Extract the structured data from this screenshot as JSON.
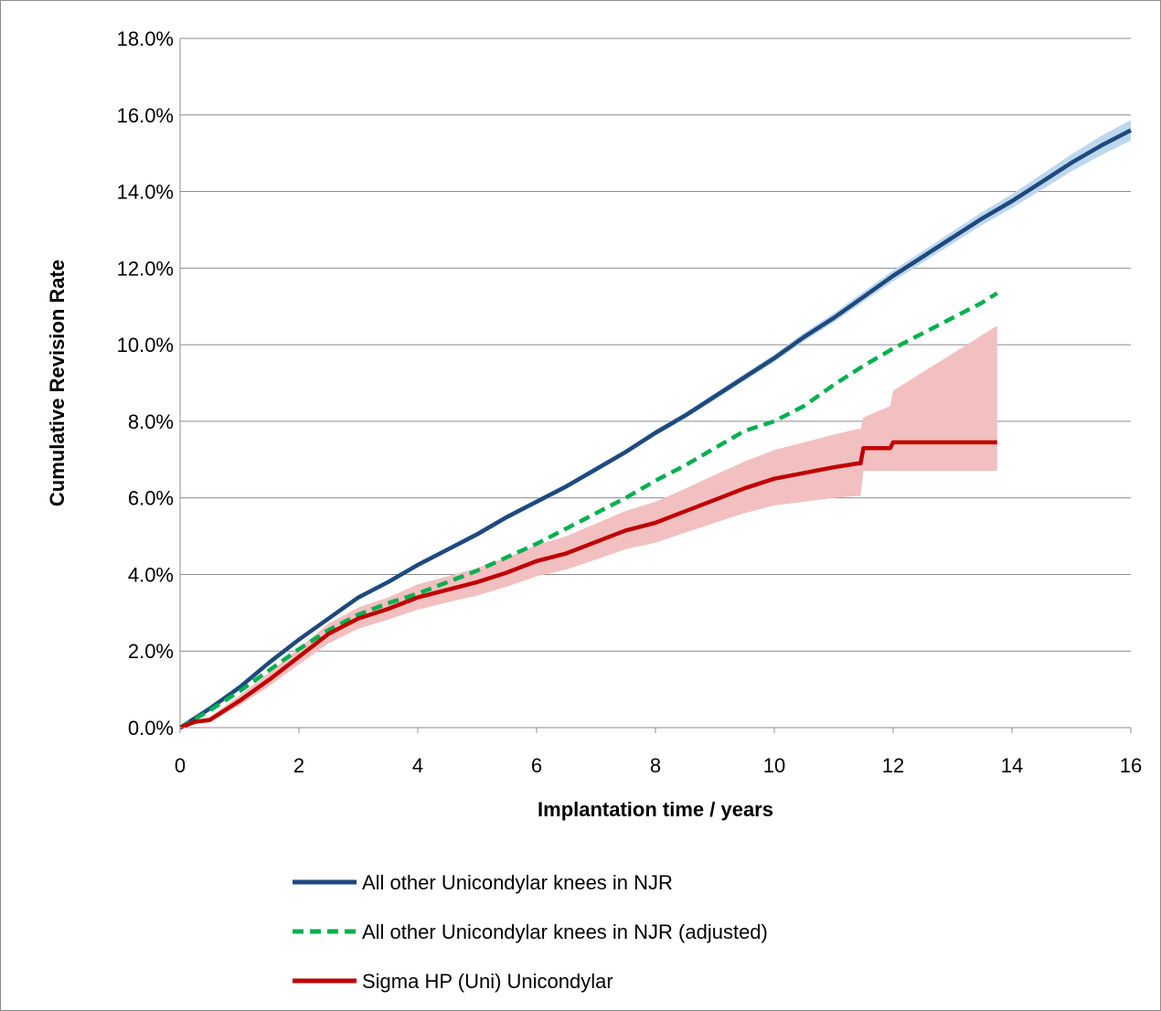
{
  "chart_data": {
    "type": "line",
    "xlabel": "Implantation time  / years",
    "ylabel": "Cumulative Revision Rate",
    "xlim": [
      0,
      16
    ],
    "ylim": [
      0,
      18
    ],
    "x_ticks": [
      0,
      2,
      4,
      6,
      8,
      10,
      12,
      14,
      16
    ],
    "x_tick_labels": [
      "0",
      "2",
      "4",
      "6",
      "8",
      "10",
      "12",
      "14",
      "16"
    ],
    "y_ticks": [
      0,
      2,
      4,
      6,
      8,
      10,
      12,
      14,
      16,
      18
    ],
    "y_tick_labels": [
      "0.0%",
      "2.0%",
      "4.0%",
      "6.0%",
      "8.0%",
      "10.0%",
      "12.0%",
      "14.0%",
      "16.0%",
      "18.0%"
    ],
    "grid": "horizontal",
    "legend_position": "bottom",
    "series": [
      {
        "name": "All other Unicondylar knees in NJR",
        "color": "#1f497d",
        "band_color": "#bdd7ee",
        "style": "solid",
        "x": [
          0,
          0.5,
          1,
          1.5,
          2,
          2.5,
          3,
          3.5,
          4,
          4.5,
          5,
          5.5,
          6,
          6.5,
          7,
          7.5,
          8,
          8.5,
          9,
          9.5,
          10,
          10.5,
          11,
          11.5,
          12,
          12.5,
          13,
          13.5,
          14,
          14.5,
          15,
          15.5,
          16
        ],
        "values": [
          0,
          0.5,
          1.05,
          1.7,
          2.3,
          2.85,
          3.4,
          3.8,
          4.25,
          4.65,
          5.05,
          5.5,
          5.9,
          6.3,
          6.75,
          7.2,
          7.7,
          8.15,
          8.65,
          9.15,
          9.65,
          10.2,
          10.7,
          11.25,
          11.8,
          12.3,
          12.8,
          13.3,
          13.75,
          14.25,
          14.75,
          15.2,
          15.6
        ],
        "lower": [
          0,
          0.47,
          1.0,
          1.64,
          2.24,
          2.79,
          3.34,
          3.74,
          4.19,
          4.59,
          4.98,
          5.43,
          5.83,
          6.23,
          6.68,
          7.13,
          7.62,
          8.07,
          8.56,
          9.06,
          9.55,
          10.09,
          10.58,
          11.12,
          11.66,
          12.15,
          12.64,
          13.13,
          13.57,
          14.05,
          14.53,
          14.95,
          15.33
        ],
        "upper": [
          0,
          0.53,
          1.1,
          1.76,
          2.36,
          2.91,
          3.46,
          3.86,
          4.31,
          4.71,
          5.12,
          5.57,
          5.97,
          6.37,
          6.82,
          7.27,
          7.78,
          8.23,
          8.74,
          9.24,
          9.75,
          10.31,
          10.82,
          11.38,
          11.94,
          12.45,
          12.96,
          13.47,
          13.93,
          14.45,
          14.97,
          15.45,
          15.87
        ]
      },
      {
        "name": "All other Unicondylar knees in NJR (adjusted)",
        "color": "#00b050",
        "style": "dashed",
        "x": [
          0,
          0.5,
          1,
          1.5,
          2,
          2.5,
          3,
          3.5,
          4,
          4.5,
          5,
          5.5,
          6,
          6.5,
          7,
          7.5,
          8,
          8.5,
          9,
          9.5,
          10,
          10.5,
          11,
          11.5,
          12,
          12.5,
          13,
          13.5,
          13.75
        ],
        "values": [
          0,
          0.45,
          0.95,
          1.5,
          2.05,
          2.55,
          2.95,
          3.25,
          3.5,
          3.8,
          4.1,
          4.45,
          4.8,
          5.2,
          5.6,
          6.0,
          6.45,
          6.85,
          7.3,
          7.75,
          8.0,
          8.4,
          8.95,
          9.45,
          9.9,
          10.3,
          10.7,
          11.1,
          11.35
        ]
      },
      {
        "name": "Sigma HP (Uni) Unicondylar",
        "color": "#c00000",
        "band_color": "#f2c0c0",
        "style": "solid",
        "x": [
          0,
          0.25,
          0.5,
          1,
          1.5,
          2,
          2.5,
          3,
          3.5,
          4,
          4.5,
          5,
          5.5,
          6,
          6.5,
          7,
          7.5,
          8,
          8.5,
          9,
          9.5,
          10,
          10.5,
          11,
          11.4,
          11.45,
          11.5,
          11.95,
          12,
          13.75
        ],
        "values": [
          0,
          0.15,
          0.2,
          0.7,
          1.25,
          1.85,
          2.45,
          2.85,
          3.1,
          3.4,
          3.6,
          3.8,
          4.05,
          4.35,
          4.55,
          4.85,
          5.15,
          5.35,
          5.65,
          5.95,
          6.25,
          6.5,
          6.65,
          6.8,
          6.9,
          6.9,
          7.3,
          7.3,
          7.45,
          7.45
        ],
        "lower": [
          0,
          0.1,
          0.14,
          0.58,
          1.08,
          1.65,
          2.2,
          2.58,
          2.82,
          3.08,
          3.27,
          3.45,
          3.68,
          3.95,
          4.13,
          4.39,
          4.66,
          4.83,
          5.09,
          5.35,
          5.6,
          5.8,
          5.9,
          6.0,
          6.05,
          6.05,
          6.7,
          6.7,
          6.7,
          6.7
        ],
        "upper": [
          0,
          0.2,
          0.28,
          0.84,
          1.44,
          2.07,
          2.72,
          3.14,
          3.4,
          3.74,
          3.95,
          4.17,
          4.44,
          4.77,
          5.0,
          5.33,
          5.66,
          5.9,
          6.24,
          6.6,
          6.95,
          7.25,
          7.45,
          7.65,
          7.8,
          7.8,
          8.1,
          8.4,
          8.8,
          10.5
        ]
      }
    ]
  }
}
